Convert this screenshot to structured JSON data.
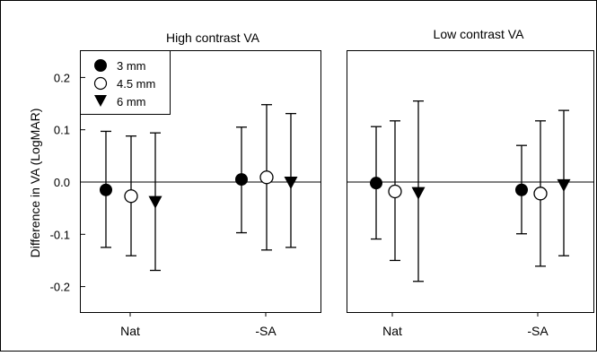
{
  "ylabel": "Difference in VA (LogMAR)",
  "yticks": [
    0.2,
    0.1,
    0.0,
    -0.1,
    -0.2
  ],
  "ytick_labels": [
    "0.2",
    "0.1",
    "0.0",
    "-0.1",
    "-0.2"
  ],
  "legend": {
    "placement": "top-left",
    "entries": [
      {
        "label": "3 mm",
        "marker": "filled-circle"
      },
      {
        "label": "4.5 mm",
        "marker": "open-circle"
      },
      {
        "label": "6 mm",
        "marker": "filled-triangle-down"
      }
    ]
  },
  "chart_data": [
    {
      "type": "scatter",
      "title": "High contrast VA",
      "categories": [
        "Nat",
        "-SA"
      ],
      "ylabel": "Difference in VA (LogMAR)",
      "ylim": [
        -0.25,
        0.25
      ],
      "reference_line": 0.0,
      "series": [
        {
          "name": "3 mm",
          "marker": "filled-circle",
          "values": [
            -0.015,
            0.005
          ],
          "lower": [
            -0.125,
            -0.097
          ],
          "upper": [
            0.097,
            0.105
          ]
        },
        {
          "name": "4.5 mm",
          "marker": "open-circle",
          "values": [
            -0.027,
            0.009
          ],
          "lower": [
            -0.141,
            -0.13
          ],
          "upper": [
            0.088,
            0.148
          ]
        },
        {
          "name": "6 mm",
          "marker": "filled-triangle-down",
          "values": [
            -0.037,
            0.0
          ],
          "lower": [
            -0.169,
            -0.125
          ],
          "upper": [
            0.094,
            0.131
          ]
        }
      ]
    },
    {
      "type": "scatter",
      "title": "Low contrast VA",
      "categories": [
        "Nat",
        "-SA"
      ],
      "ylim": [
        -0.25,
        0.25
      ],
      "reference_line": 0.0,
      "series": [
        {
          "name": "3 mm",
          "marker": "filled-circle",
          "values": [
            -0.002,
            -0.015
          ],
          "lower": [
            -0.109,
            -0.099
          ],
          "upper": [
            0.106,
            0.07
          ]
        },
        {
          "name": "4.5 mm",
          "marker": "open-circle",
          "values": [
            -0.018,
            -0.022
          ],
          "lower": [
            -0.15,
            -0.161
          ],
          "upper": [
            0.117,
            0.117
          ]
        },
        {
          "name": "6 mm",
          "marker": "filled-triangle-down",
          "values": [
            -0.02,
            -0.005
          ],
          "lower": [
            -0.19,
            -0.141
          ],
          "upper": [
            0.155,
            0.137
          ]
        }
      ]
    }
  ]
}
